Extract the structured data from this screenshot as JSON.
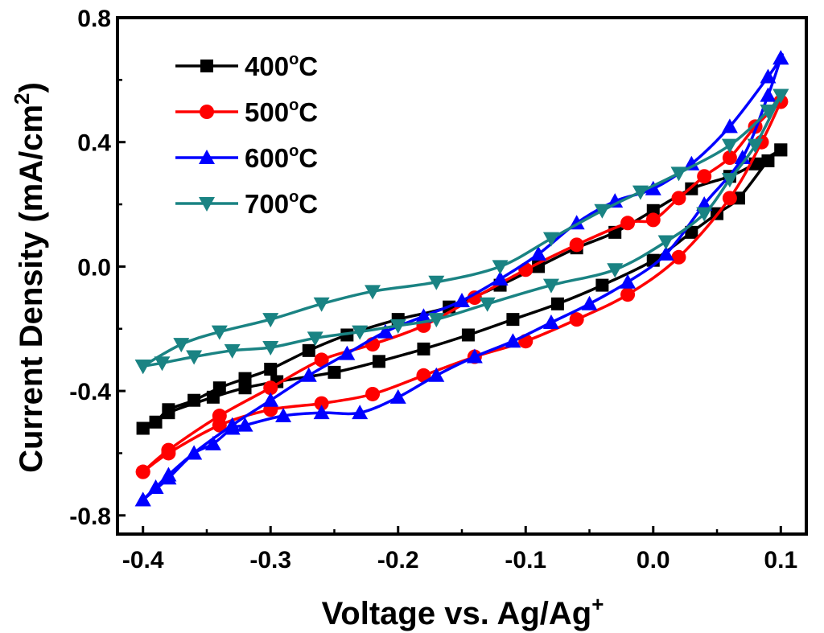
{
  "chart_data": {
    "type": "line",
    "title": "",
    "xlabel_main": "Voltage vs. Ag/Ag",
    "xlabel_sup": "+",
    "ylabel_main": "Current Density (mA/cm",
    "ylabel_sup": "2",
    "ylabel_end": ")",
    "xlim": [
      -0.42,
      0.12
    ],
    "ylim": [
      -0.86,
      0.8
    ],
    "xticks": [
      -0.4,
      -0.3,
      -0.2,
      -0.1,
      0.0,
      0.1
    ],
    "xtick_labels": [
      "-0.4",
      "-0.3",
      "-0.2",
      "-0.1",
      "0.0",
      "0.1"
    ],
    "yticks": [
      -0.8,
      -0.4,
      0.0,
      0.4,
      0.8
    ],
    "ytick_labels": [
      "-0.8",
      "-0.4",
      "0.0",
      "0.4",
      "0.8"
    ],
    "legend_position": "top-left",
    "series": [
      {
        "name": "400°C",
        "label_main": "400",
        "label_deg": "o",
        "label_unit": "C",
        "color": "#000000",
        "marker": "square",
        "x": [
          -0.4,
          -0.39,
          -0.38,
          -0.36,
          -0.34,
          -0.32,
          -0.3,
          -0.27,
          -0.24,
          -0.2,
          -0.16,
          -0.12,
          -0.09,
          -0.06,
          -0.03,
          0.0,
          0.03,
          0.06,
          0.08,
          0.1,
          0.1,
          0.09,
          0.067,
          0.05,
          0.03,
          0.0,
          -0.04,
          -0.075,
          -0.11,
          -0.145,
          -0.18,
          -0.215,
          -0.25,
          -0.295,
          -0.32,
          -0.345,
          -0.38,
          -0.4
        ],
        "y": [
          -0.52,
          -0.5,
          -0.46,
          -0.43,
          -0.39,
          -0.36,
          -0.33,
          -0.27,
          -0.22,
          -0.17,
          -0.13,
          -0.06,
          0.0,
          0.06,
          0.11,
          0.18,
          0.25,
          0.29,
          0.33,
          0.375,
          0.375,
          0.34,
          0.22,
          0.17,
          0.11,
          0.02,
          -0.06,
          -0.12,
          -0.17,
          -0.22,
          -0.265,
          -0.305,
          -0.34,
          -0.37,
          -0.39,
          -0.42,
          -0.47,
          -0.52
        ]
      },
      {
        "name": "500°C",
        "label_main": "500",
        "label_deg": "o",
        "label_unit": "C",
        "color": "#ff0000",
        "marker": "circle",
        "x": [
          -0.4,
          -0.38,
          -0.34,
          -0.3,
          -0.26,
          -0.22,
          -0.18,
          -0.14,
          -0.1,
          -0.06,
          -0.02,
          0.02,
          0.06,
          0.085,
          0.1,
          0.1,
          0.08,
          0.06,
          0.04,
          0.02,
          0.0,
          -0.02,
          -0.06,
          -0.1,
          -0.14,
          -0.18,
          -0.22,
          -0.26,
          -0.3,
          -0.34,
          -0.38,
          -0.4
        ],
        "y": [
          -0.66,
          -0.6,
          -0.51,
          -0.46,
          -0.44,
          -0.41,
          -0.35,
          -0.29,
          -0.24,
          -0.17,
          -0.09,
          0.03,
          0.22,
          0.4,
          0.53,
          0.53,
          0.45,
          0.35,
          0.29,
          0.22,
          0.15,
          0.14,
          0.07,
          -0.01,
          -0.1,
          -0.19,
          -0.25,
          -0.3,
          -0.39,
          -0.48,
          -0.59,
          -0.66
        ]
      },
      {
        "name": "600°C",
        "label_main": "600",
        "label_deg": "o",
        "label_unit": "C",
        "color": "#0000ff",
        "marker": "triangle-up",
        "x": [
          -0.4,
          -0.39,
          -0.38,
          -0.36,
          -0.345,
          -0.33,
          -0.32,
          -0.29,
          -0.26,
          -0.23,
          -0.2,
          -0.17,
          -0.14,
          -0.11,
          -0.08,
          -0.05,
          -0.02,
          0.01,
          0.04,
          0.07,
          0.09,
          0.1,
          0.1,
          0.09,
          0.06,
          0.03,
          0.0,
          -0.03,
          -0.06,
          -0.09,
          -0.12,
          -0.15,
          -0.18,
          -0.21,
          -0.24,
          -0.27,
          -0.3,
          -0.33,
          -0.36,
          -0.38,
          -0.4
        ],
        "y": [
          -0.75,
          -0.71,
          -0.67,
          -0.6,
          -0.57,
          -0.52,
          -0.51,
          -0.48,
          -0.47,
          -0.47,
          -0.42,
          -0.35,
          -0.29,
          -0.24,
          -0.18,
          -0.12,
          -0.05,
          0.04,
          0.2,
          0.35,
          0.55,
          0.67,
          0.67,
          0.61,
          0.45,
          0.33,
          0.25,
          0.21,
          0.14,
          0.04,
          -0.04,
          -0.11,
          -0.16,
          -0.21,
          -0.28,
          -0.35,
          -0.43,
          -0.51,
          -0.6,
          -0.68,
          -0.75
        ]
      },
      {
        "name": "700°C",
        "label_main": "700",
        "label_deg": "o",
        "label_unit": "C",
        "color": "#1a8383",
        "marker": "triangle-down",
        "x": [
          -0.4,
          -0.385,
          -0.36,
          -0.33,
          -0.3,
          -0.265,
          -0.23,
          -0.2,
          -0.17,
          -0.13,
          -0.08,
          -0.03,
          0.01,
          0.04,
          0.06,
          0.08,
          0.1,
          0.1,
          0.09,
          0.06,
          0.02,
          -0.01,
          -0.04,
          -0.08,
          -0.12,
          -0.17,
          -0.22,
          -0.26,
          -0.3,
          -0.34,
          -0.37,
          -0.4
        ],
        "y": [
          -0.32,
          -0.31,
          -0.29,
          -0.27,
          -0.26,
          -0.23,
          -0.21,
          -0.19,
          -0.17,
          -0.12,
          -0.06,
          -0.01,
          0.08,
          0.17,
          0.28,
          0.39,
          0.55,
          0.55,
          0.5,
          0.39,
          0.3,
          0.24,
          0.18,
          0.09,
          0.0,
          -0.05,
          -0.08,
          -0.12,
          -0.17,
          -0.21,
          -0.25,
          -0.32
        ]
      }
    ]
  }
}
